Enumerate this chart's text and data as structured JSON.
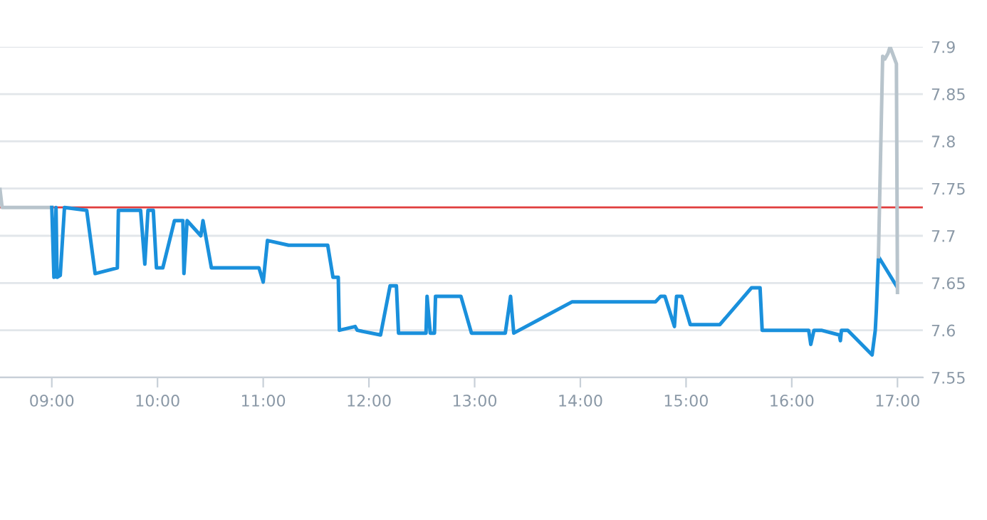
{
  "chart_data": {
    "type": "line",
    "xlim": [
      8.51,
      17.24
    ],
    "ylim": [
      7.55,
      7.9
    ],
    "xticks": [
      {
        "value": 9,
        "label": "09:00"
      },
      {
        "value": 10,
        "label": "10:00"
      },
      {
        "value": 11,
        "label": "11:00"
      },
      {
        "value": 12,
        "label": "12:00"
      },
      {
        "value": 13,
        "label": "13:00"
      },
      {
        "value": 14,
        "label": "14:00"
      },
      {
        "value": 15,
        "label": "15:00"
      },
      {
        "value": 16,
        "label": "16:00"
      },
      {
        "value": 17,
        "label": "17:00"
      }
    ],
    "yticks": [
      7.55,
      7.6,
      7.65,
      7.7,
      7.75,
      7.8,
      7.85,
      7.9
    ],
    "grid": "y",
    "legend": false,
    "marker": "none",
    "line_style": "solid",
    "ref_lines": [
      {
        "axis": "y",
        "value": 7.73,
        "color": "#e03c3c",
        "line_style": "solid"
      }
    ],
    "series": [
      {
        "color": "#b8c4cc",
        "x": [
          8.51,
          8.53,
          9.0
        ],
        "values": [
          7.749,
          7.73,
          7.73
        ]
      },
      {
        "color": "#1a90dc",
        "x": [
          9.0,
          9.02,
          9.04,
          9.05,
          9.08,
          9.12,
          9.33,
          9.41,
          9.62,
          9.63,
          9.84,
          9.88,
          9.91,
          9.96,
          9.99,
          10.05,
          10.16,
          10.24,
          10.25,
          10.28,
          10.41,
          10.43,
          10.51,
          10.96,
          11.0,
          11.04,
          11.24,
          11.61,
          11.66,
          11.71,
          11.72,
          11.87,
          11.89,
          12.11,
          12.2,
          12.26,
          12.28,
          12.54,
          12.55,
          12.58,
          12.62,
          12.63,
          12.87,
          12.97,
          13.29,
          13.34,
          13.37,
          13.92,
          14.71,
          14.76,
          14.8,
          14.89,
          14.91,
          14.96,
          15.04,
          15.32,
          15.62,
          15.7,
          15.72,
          16.16,
          16.18,
          16.21,
          16.28,
          16.45,
          16.46,
          16.47,
          16.53,
          16.76,
          16.79,
          16.8,
          16.82,
          16.99
        ],
        "values": [
          7.73,
          7.656,
          7.73,
          7.656,
          7.658,
          7.73,
          7.727,
          7.66,
          7.666,
          7.727,
          7.727,
          7.67,
          7.727,
          7.727,
          7.666,
          7.666,
          7.716,
          7.716,
          7.66,
          7.716,
          7.7,
          7.716,
          7.666,
          7.666,
          7.651,
          7.695,
          7.69,
          7.69,
          7.656,
          7.656,
          7.6,
          7.604,
          7.6,
          7.595,
          7.647,
          7.647,
          7.597,
          7.597,
          7.636,
          7.597,
          7.597,
          7.636,
          7.636,
          7.597,
          7.597,
          7.636,
          7.597,
          7.63,
          7.63,
          7.636,
          7.636,
          7.604,
          7.636,
          7.636,
          7.606,
          7.606,
          7.645,
          7.645,
          7.6,
          7.6,
          7.585,
          7.6,
          7.6,
          7.595,
          7.589,
          7.6,
          7.6,
          7.574,
          7.6,
          7.621,
          7.678,
          7.647
        ]
      },
      {
        "color": "#b8c4cc",
        "x": [
          16.82,
          16.86,
          16.88,
          16.91,
          16.93,
          16.99,
          17.0
        ],
        "values": [
          7.678,
          7.89,
          7.887,
          7.893,
          7.9,
          7.882,
          7.64
        ]
      }
    ]
  }
}
